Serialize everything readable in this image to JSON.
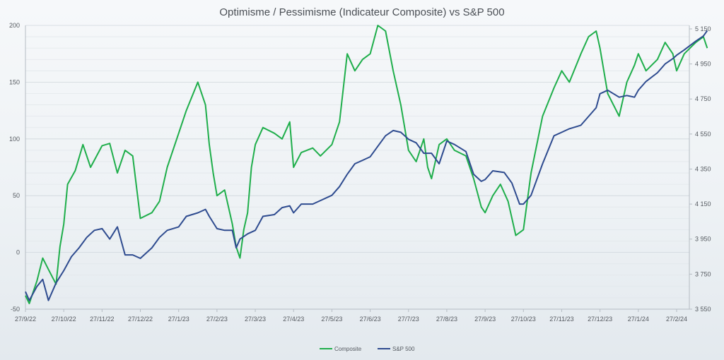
{
  "chart_data": {
    "type": "line",
    "title": "Optimisme / Pessimisme (Indicateur Composite) vs S&P 500",
    "x_tick_labels": [
      "27/9/22",
      "27/10/22",
      "27/11/22",
      "27/12/22",
      "27/1/23",
      "27/2/23",
      "27/3/23",
      "27/4/23",
      "27/5/23",
      "27/6/23",
      "27/7/23",
      "27/8/23",
      "27/9/23",
      "27/10/23",
      "27/11/23",
      "27/12/23",
      "27/1/24",
      "27/2/24"
    ],
    "y_left_ticks": [
      -50,
      0,
      50,
      100,
      150,
      200
    ],
    "y_right_ticks": [
      "3 550",
      "3 750",
      "3 950",
      "4 150",
      "4 350",
      "4 550",
      "4 750",
      "4 950",
      "5 150"
    ],
    "ylim_left": [
      -50,
      200
    ],
    "ylim_right": [
      3550,
      5170
    ],
    "x_month_index": [
      0,
      1,
      2,
      3,
      4,
      5,
      6,
      7,
      8,
      9,
      10,
      11,
      12,
      13,
      14,
      15,
      16,
      17
    ],
    "series": [
      {
        "name": "Composite",
        "axis": "left",
        "color": "#1fae4b",
        "x": [
          0,
          0.1,
          0.3,
          0.45,
          0.6,
          0.8,
          0.9,
          1.0,
          1.1,
          1.3,
          1.5,
          1.7,
          2.0,
          2.2,
          2.4,
          2.6,
          2.8,
          3.0,
          3.3,
          3.5,
          3.7,
          4.0,
          4.2,
          4.5,
          4.7,
          4.8,
          4.9,
          5.0,
          5.2,
          5.4,
          5.5,
          5.6,
          5.7,
          5.8,
          5.9,
          6.0,
          6.2,
          6.5,
          6.7,
          6.9,
          7.0,
          7.2,
          7.5,
          7.7,
          8.0,
          8.2,
          8.4,
          8.6,
          8.8,
          9.0,
          9.2,
          9.4,
          9.6,
          9.8,
          10.0,
          10.2,
          10.4,
          10.5,
          10.6,
          10.8,
          11.0,
          11.2,
          11.5,
          11.7,
          11.9,
          12.0,
          12.2,
          12.4,
          12.6,
          12.8,
          13.0,
          13.2,
          13.5,
          13.8,
          14.0,
          14.2,
          14.5,
          14.7,
          14.9,
          15.0,
          15.2,
          15.5,
          15.7,
          15.9,
          16.0,
          16.2,
          16.5,
          16.7,
          16.9,
          17.0,
          17.2,
          17.5,
          17.7,
          17.8
        ],
        "values": [
          -38,
          -45,
          -25,
          -5,
          -15,
          -28,
          5,
          25,
          60,
          72,
          95,
          75,
          94,
          96,
          70,
          90,
          85,
          30,
          35,
          45,
          75,
          105,
          125,
          150,
          130,
          95,
          70,
          50,
          55,
          25,
          5,
          -5,
          20,
          35,
          75,
          95,
          110,
          105,
          100,
          115,
          75,
          88,
          92,
          85,
          95,
          115,
          175,
          160,
          170,
          175,
          200,
          195,
          160,
          130,
          90,
          80,
          100,
          75,
          65,
          95,
          100,
          90,
          85,
          65,
          40,
          35,
          50,
          60,
          45,
          15,
          20,
          70,
          120,
          145,
          160,
          150,
          175,
          190,
          195,
          180,
          140,
          120,
          150,
          165,
          175,
          160,
          170,
          185,
          175,
          160,
          175,
          185,
          190,
          180
        ],
        "x_max": 17.8
      },
      {
        "name": "S&P 500",
        "axis": "right",
        "color": "#2e4b8f",
        "x": [
          0,
          0.1,
          0.3,
          0.45,
          0.6,
          0.8,
          1.0,
          1.2,
          1.4,
          1.6,
          1.8,
          2.0,
          2.2,
          2.4,
          2.6,
          2.8,
          3.0,
          3.3,
          3.5,
          3.7,
          4.0,
          4.2,
          4.5,
          4.7,
          4.8,
          5.0,
          5.2,
          5.4,
          5.5,
          5.6,
          5.8,
          6.0,
          6.2,
          6.5,
          6.7,
          6.9,
          7.0,
          7.2,
          7.5,
          7.7,
          8.0,
          8.2,
          8.4,
          8.6,
          8.8,
          9.0,
          9.2,
          9.4,
          9.6,
          9.8,
          10.0,
          10.2,
          10.4,
          10.6,
          10.8,
          11.0,
          11.2,
          11.5,
          11.7,
          11.9,
          12.0,
          12.2,
          12.5,
          12.7,
          12.9,
          13.0,
          13.2,
          13.5,
          13.8,
          14.0,
          14.2,
          14.5,
          14.7,
          14.9,
          15.0,
          15.2,
          15.5,
          15.7,
          15.9,
          16.0,
          16.2,
          16.5,
          16.7,
          16.9,
          17.0,
          17.2,
          17.5,
          17.7,
          17.8
        ],
        "values": [
          3650,
          3600,
          3680,
          3720,
          3600,
          3700,
          3770,
          3850,
          3900,
          3960,
          4000,
          4010,
          3950,
          4020,
          3860,
          3860,
          3840,
          3900,
          3960,
          4000,
          4020,
          4080,
          4100,
          4120,
          4080,
          4010,
          4000,
          4000,
          3900,
          3950,
          3980,
          4000,
          4080,
          4090,
          4130,
          4140,
          4100,
          4150,
          4150,
          4170,
          4200,
          4250,
          4320,
          4380,
          4400,
          4420,
          4480,
          4540,
          4570,
          4560,
          4520,
          4500,
          4440,
          4440,
          4380,
          4510,
          4490,
          4450,
          4320,
          4280,
          4290,
          4340,
          4330,
          4270,
          4150,
          4150,
          4200,
          4380,
          4540,
          4560,
          4580,
          4600,
          4650,
          4700,
          4780,
          4800,
          4760,
          4770,
          4760,
          4800,
          4850,
          4900,
          4950,
          4980,
          5000,
          5030,
          5080,
          5110,
          5140
        ]
      }
    ]
  }
}
